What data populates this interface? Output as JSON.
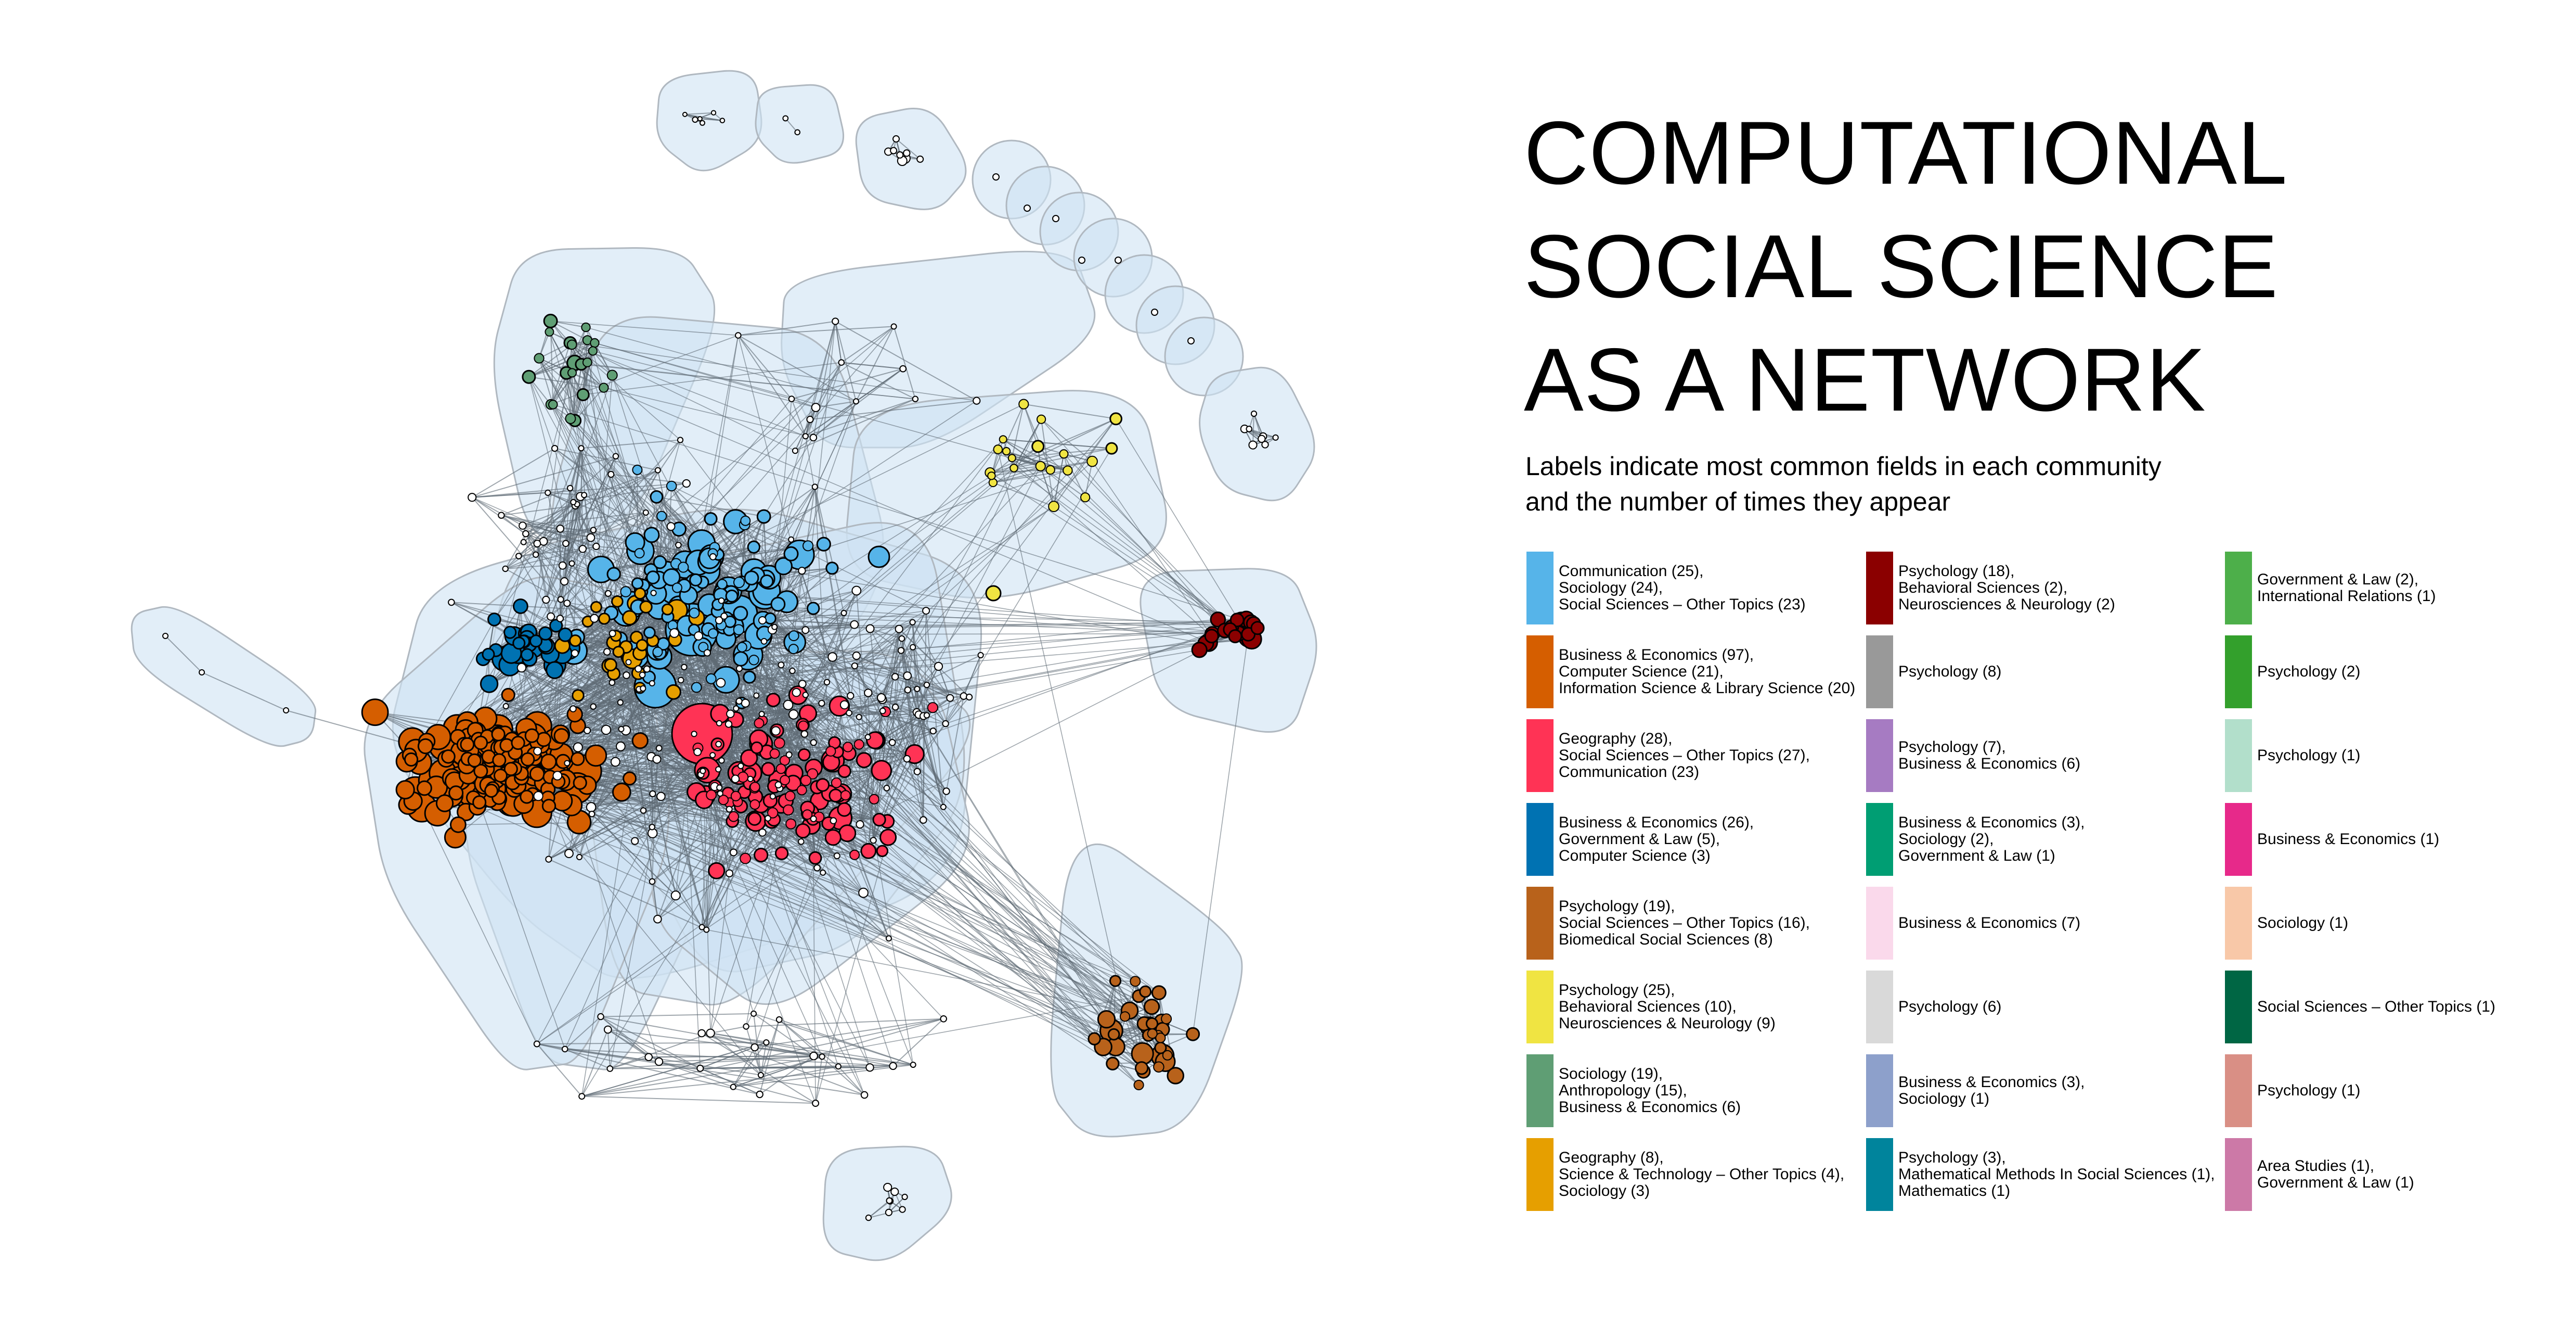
{
  "title_lines": [
    "COMPUTATIONAL",
    "SOCIAL SCIENCE",
    "AS A NETWORK"
  ],
  "subtitle_lines": [
    "Labels indicate most common fields in each community",
    "and the number of times they appear"
  ],
  "legend": [
    {
      "color": "#56B4E9",
      "lines": [
        "Communication (25),",
        "Sociology (24),",
        "Social Sciences – Other Topics (23)"
      ]
    },
    {
      "color": "#D55E00",
      "lines": [
        "Business & Economics (97),",
        "Computer Science (21),",
        "Information Science & Library Science (20)"
      ]
    },
    {
      "color": "#FF3355",
      "lines": [
        "Geography (28),",
        "Social Sciences – Other Topics (27),",
        "Communication (23)"
      ]
    },
    {
      "color": "#0072B2",
      "lines": [
        "Business & Economics (26),",
        "Government & Law (5),",
        "Computer Science (3)"
      ]
    },
    {
      "color": "#B8621B",
      "lines": [
        "Psychology (19),",
        "Social Sciences – Other Topics (16),",
        "Biomedical Social Sciences (8)"
      ]
    },
    {
      "color": "#F0E442",
      "lines": [
        "Psychology (25),",
        "Behavioral Sciences (10),",
        "Neurosciences & Neurology (9)"
      ]
    },
    {
      "color": "#5F9E74",
      "lines": [
        "Sociology (19),",
        "Anthropology (15),",
        "Business & Economics (6)"
      ]
    },
    {
      "color": "#E69F00",
      "lines": [
        "Geography (8),",
        "Science & Technology – Other Topics (4),",
        "Sociology (3)"
      ]
    },
    {
      "color": "#8B0000",
      "lines": [
        "Psychology (18),",
        "Behavioral Sciences (2),",
        "Neurosciences & Neurology (2)"
      ]
    },
    {
      "color": "#999999",
      "lines": [
        "Psychology (8)"
      ]
    },
    {
      "color": "#A67BC2",
      "lines": [
        "Psychology (7),",
        "Business & Economics (6)"
      ]
    },
    {
      "color": "#009E73",
      "lines": [
        "Business & Economics (3),",
        "Sociology (2),",
        "Government & Law (1)"
      ]
    },
    {
      "color": "#FAD9EB",
      "lines": [
        "Business & Economics (7)"
      ]
    },
    {
      "color": "#D9D9D9",
      "lines": [
        "Psychology (6)"
      ]
    },
    {
      "color": "#8DA0CB",
      "lines": [
        "Business & Economics (3),",
        "Sociology (1)"
      ]
    },
    {
      "color": "#00849C",
      "lines": [
        "Psychology (3),",
        "Mathematical Methods In Social Sciences (1),",
        "Mathematics (1)"
      ]
    },
    {
      "color": "#4DAF4A",
      "lines": [
        "Government & Law (2),",
        "International Relations (1)"
      ]
    },
    {
      "color": "#33A02C",
      "lines": [
        "Psychology (2)"
      ]
    },
    {
      "color": "#B2DFCB",
      "lines": [
        "Psychology (1)"
      ]
    },
    {
      "color": "#E7298A",
      "lines": [
        "Business & Economics (1)"
      ]
    },
    {
      "color": "#F8C8A8",
      "lines": [
        "Sociology (1)"
      ]
    },
    {
      "color": "#006644",
      "lines": [
        "Social Sciences – Other Topics (1)"
      ]
    },
    {
      "color": "#D98F85",
      "lines": [
        "Psychology (1)"
      ]
    },
    {
      "color": "#CC79A7",
      "lines": [
        "Area Studies (1),",
        "Government & Law (1)"
      ]
    }
  ],
  "colors": {
    "hull_fill": "#cfe3f4",
    "hull_stroke": "#b0b8c0",
    "edge": "#5f6a75",
    "isolated_node": "#ffffff"
  }
}
